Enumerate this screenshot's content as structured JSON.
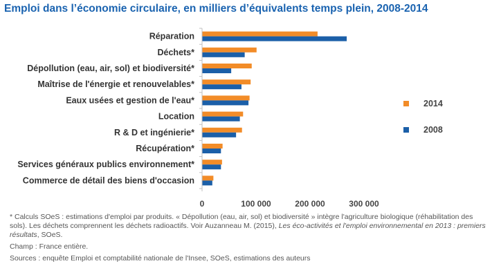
{
  "title": "Emploi dans l’économie circulaire, en milliers d’équivalents temps plein, 2008-2014",
  "chart_data": {
    "type": "bar",
    "orientation": "horizontal",
    "categories": [
      "Réparation",
      "Déchets*",
      "Dépollution (eau, air, sol) et biodiversité*",
      "Maîtrise de l'énergie et renouvelables*",
      "Eaux usées et gestion de l'eau*",
      "Location",
      "R & D et ingénierie*",
      "Récupération*",
      "Services généraux publics environnement*",
      "Commerce de détail des biens d'occasion"
    ],
    "series": [
      {
        "name": "2014",
        "color": "#f28c28",
        "values": [
          214000,
          101000,
          92000,
          90000,
          88000,
          76000,
          74000,
          38000,
          37000,
          21000
        ]
      },
      {
        "name": "2008",
        "color": "#1b5fa8",
        "values": [
          268000,
          79000,
          54000,
          73000,
          86000,
          70000,
          63000,
          35000,
          35000,
          19000
        ]
      }
    ],
    "xlim": [
      0,
      300000
    ],
    "x_ticks": [
      "0",
      "100 000",
      "200 000",
      "300 000"
    ],
    "x_tick_values": [
      0,
      100000,
      200000,
      300000
    ],
    "legend_position": "right",
    "grid": false
  },
  "notes": {
    "note1_a": "* Calculs SOeS : estimations d'emploi par produits. « Dépollution (eau, air, sol) et biodiversité » intègre l'agriculture biologique (réhabilitation des sols). Les déchets comprennent les déchets radioactifs. Voir Auzanneau M. (2015), ",
    "note1_em": "Les éco-activités et l'emploi environnemental en 2013 : premiers résultats",
    "note1_b": ", SOeS.",
    "champ": "Champ : France entière.",
    "sources": "Sources : enquête Emploi et comptabilité nationale de l'Insee, SOeS, estimations des auteurs"
  }
}
